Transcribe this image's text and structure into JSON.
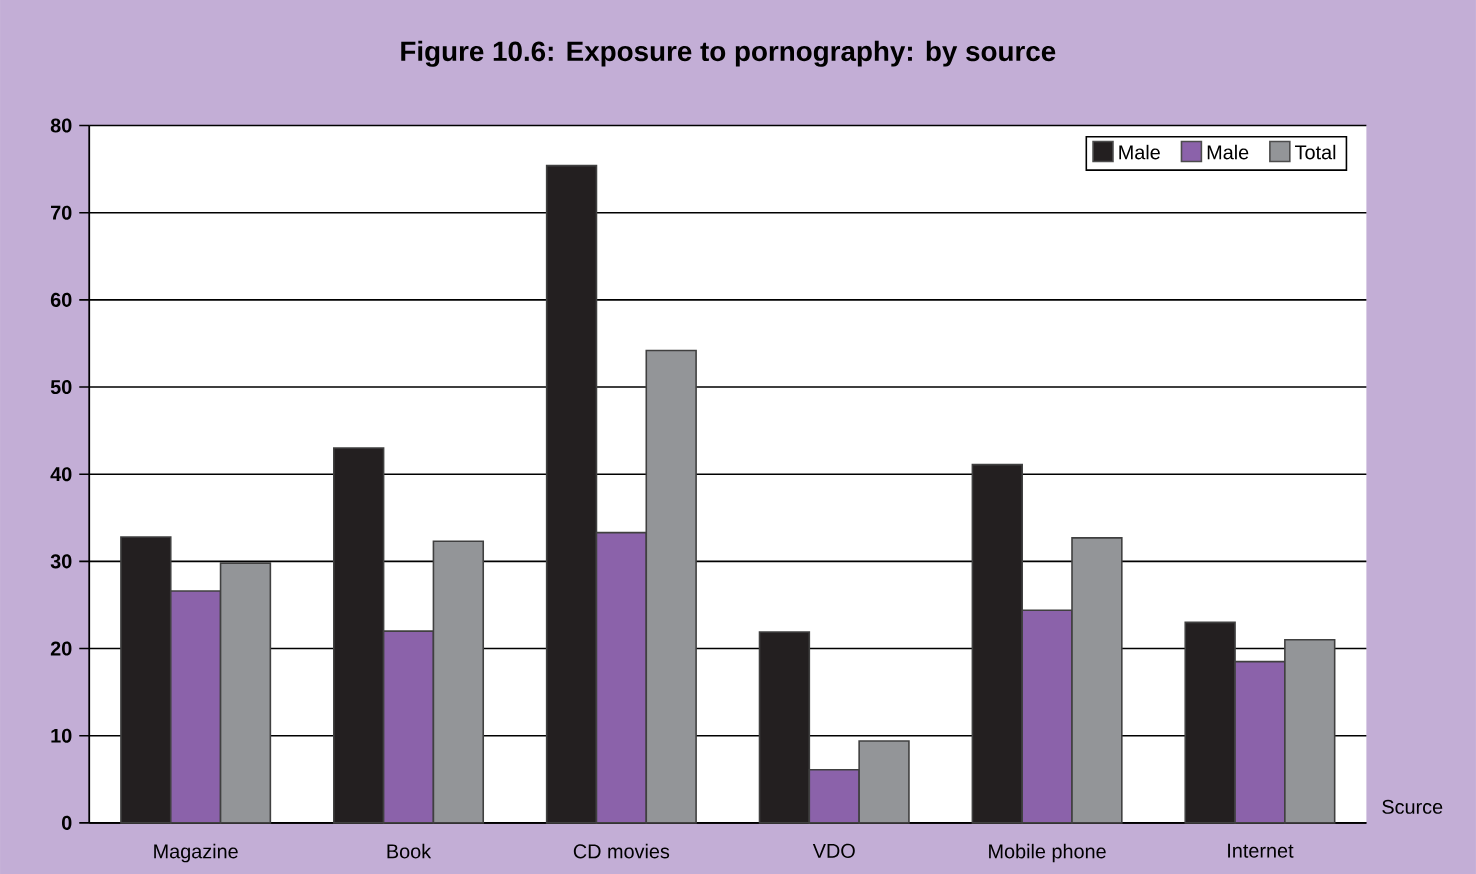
{
  "chart_data": {
    "type": "bar",
    "title": "Figure 10.6: Exposure to pornography: by source",
    "xlabel": "Scurce",
    "categories": [
      "Magazine",
      "Book",
      "CD movies",
      "VDO",
      "Mobile phone",
      "Internet"
    ],
    "series": [
      {
        "name": "Male",
        "color": "#231f20",
        "values": [
          32.8,
          43.0,
          75.4,
          21.9,
          41.1,
          23.0
        ]
      },
      {
        "name": "Male",
        "color": "#8b62aa",
        "values": [
          26.6,
          22.0,
          33.3,
          6.1,
          24.4,
          18.5
        ]
      },
      {
        "name": "Total",
        "color": "#939598",
        "values": [
          29.8,
          32.3,
          54.2,
          9.4,
          32.7,
          21.0
        ]
      }
    ],
    "ylim": [
      0,
      80
    ],
    "yticks": [
      0,
      10,
      20,
      30,
      40,
      50,
      60,
      70,
      80
    ],
    "grid": "y",
    "legend": "top right"
  }
}
